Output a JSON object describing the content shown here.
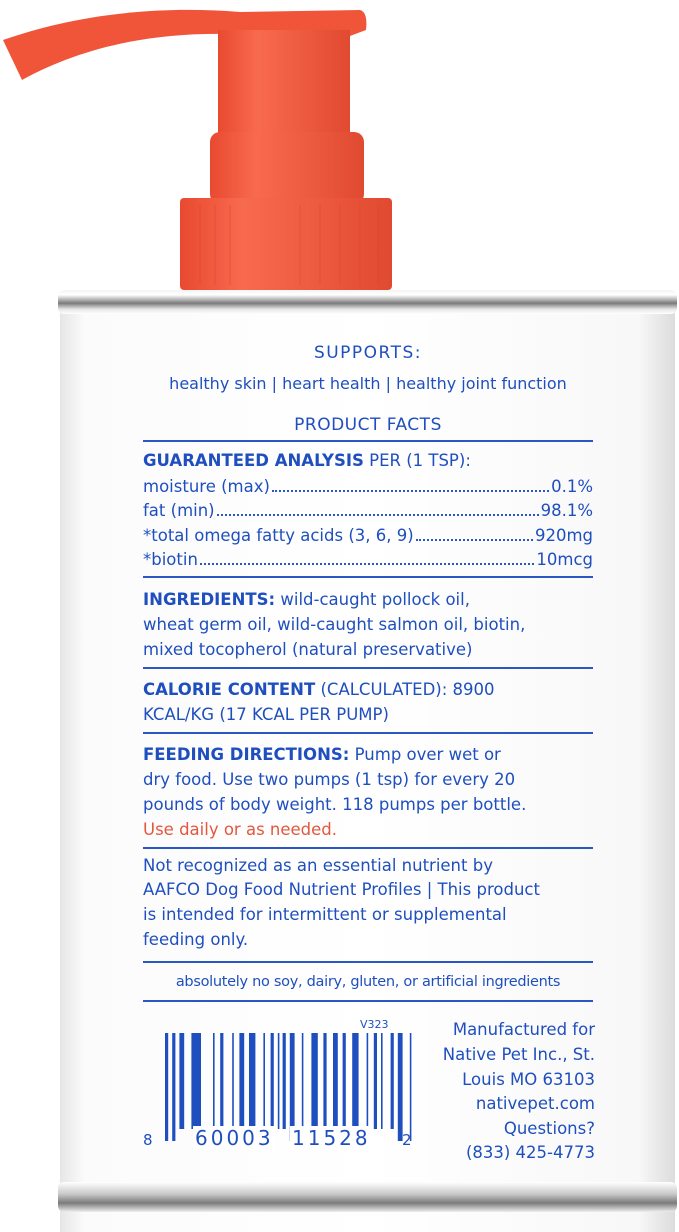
{
  "colors": {
    "text": "#1f4fbf",
    "accent": "#e4573d",
    "pump": "#f0553a"
  },
  "label": {
    "supports_heading": "SUPPORTS:",
    "supports_text": "healthy skin | heart health | healthy joint function",
    "facts_heading": "PRODUCT FACTS",
    "analysis_heading_bold": "GUARANTEED ANALYSIS",
    "analysis_heading_rest": " PER (1 TSP):",
    "analysis": [
      {
        "name": "moisture (max)",
        "value": "0.1%"
      },
      {
        "name": "fat (min)",
        "value": "98.1%"
      },
      {
        "name": "*total omega fatty acids (3, 6, 9)",
        "value": "920mg"
      },
      {
        "name": "*biotin",
        "value": "10mcg"
      }
    ],
    "ingredients_label": "INGREDIENTS:",
    "ingredients_lines": [
      " wild-caught pollock oil,",
      "wheat germ oil, wild-caught salmon oil, biotin,",
      "mixed tocopherol (natural preservative)"
    ],
    "calorie_label": "CALORIE CONTENT",
    "calorie_lines": [
      " (CALCULATED): 8900",
      "KCAL/KG (17 KCAL PER PUMP)"
    ],
    "feeding_label": "FEEDING DIRECTIONS:",
    "feeding_lines": [
      " Pump over wet or",
      "dry food. Use two pumps (1 tsp) for every 20",
      "pounds of body weight. 118 pumps per bottle."
    ],
    "feeding_accent": "Use daily or as needed.",
    "disclaimer_lines": [
      "Not recognized as an essential nutrient by",
      "AAFCO Dog Food Nutrient Profiles | This product",
      "is intended for intermittent or supplemental",
      "feeding only."
    ],
    "free_from": "absolutely no soy, dairy, gluten, or artificial ingredients",
    "barcode": {
      "version": "V323",
      "left": "8",
      "middle1": "60003",
      "middle2": "11528",
      "right": "2"
    },
    "manufacturer_lines": [
      "Manufactured for",
      "Native Pet Inc., St.",
      "Louis MO 63103",
      "nativepet.com",
      "Questions?",
      "(833) 425-4773"
    ]
  }
}
